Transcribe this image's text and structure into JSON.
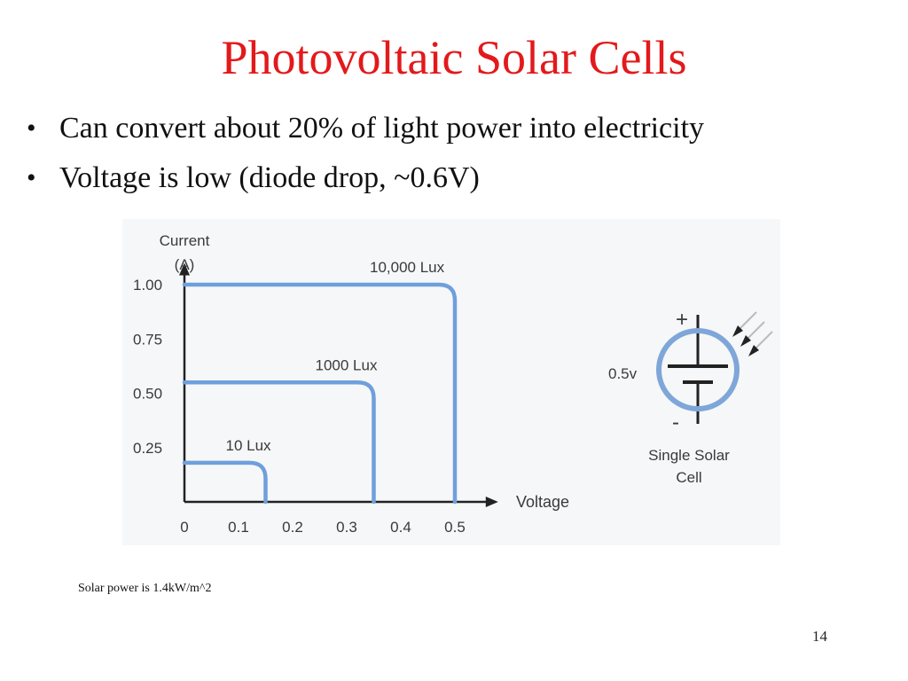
{
  "slide": {
    "title": "Photovoltaic Solar Cells",
    "bullets": [
      "Can convert about 20% of light power into electricity",
      "Voltage is low (diode drop, ~0.6V)"
    ],
    "footnote": "Solar power is 1.4kW/m^2",
    "page_number": "14"
  },
  "colors": {
    "title": "#e3191b",
    "curve": "#6f9fdc",
    "axis": "#222222",
    "text": "#3a3a3a"
  },
  "chart_data": {
    "type": "line",
    "title": "",
    "ylabel_lines": [
      "Current",
      "(A)"
    ],
    "xlabel": "Voltage",
    "x_ticks": [
      "0",
      "0.1",
      "0.2",
      "0.3",
      "0.4",
      "0.5"
    ],
    "y_ticks": [
      "0.25",
      "0.50",
      "0.75",
      "1.00"
    ],
    "xlim": [
      0,
      0.58
    ],
    "ylim": [
      0,
      1.1
    ],
    "series": [
      {
        "name": "10,000 Lux",
        "isc": 1.0,
        "voc": 0.5
      },
      {
        "name": "1000 Lux",
        "isc": 0.55,
        "voc": 0.35
      },
      {
        "name": "10 Lux",
        "isc": 0.18,
        "voc": 0.15
      }
    ]
  },
  "diagram": {
    "plus": "+",
    "minus": "-",
    "voltage": "0.5v",
    "caption_lines": [
      "Single Solar",
      "Cell"
    ]
  }
}
